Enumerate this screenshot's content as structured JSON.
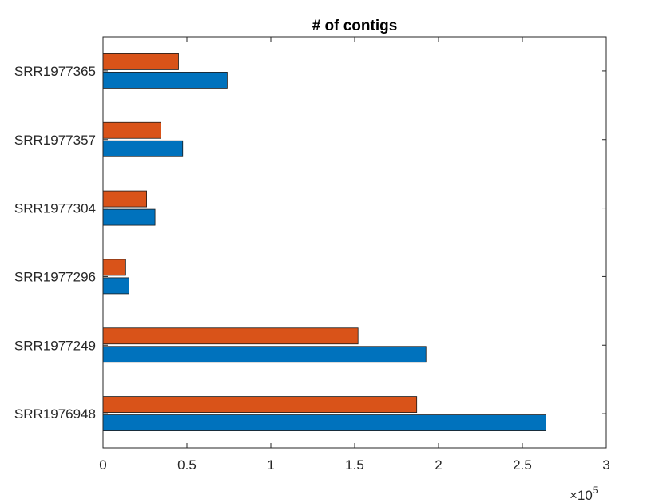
{
  "chart_data": {
    "type": "bar",
    "orientation": "horizontal",
    "title": "# of contigs",
    "xlabel": "",
    "ylabel": "",
    "categories": [
      "SRR1976948",
      "SRR1977249",
      "SRR1977296",
      "SRR1977304",
      "SRR1977357",
      "SRR1977365"
    ],
    "series": [
      {
        "color": "#0072BD",
        "values": [
          264000,
          192500,
          15500,
          31000,
          47500,
          74000
        ]
      },
      {
        "color": "#D95319",
        "values": [
          187000,
          152000,
          13500,
          26000,
          34500,
          45000
        ]
      }
    ],
    "xlim": [
      0,
      300000
    ],
    "xticks": [
      0,
      50000,
      100000,
      150000,
      200000,
      250000,
      300000
    ],
    "xtick_labels": [
      "0",
      "0.5",
      "1",
      "1.5",
      "2",
      "2.5",
      "3"
    ],
    "x_exponent_label": {
      "base": "×10",
      "power": "5"
    },
    "grid": false,
    "legend": "none"
  }
}
